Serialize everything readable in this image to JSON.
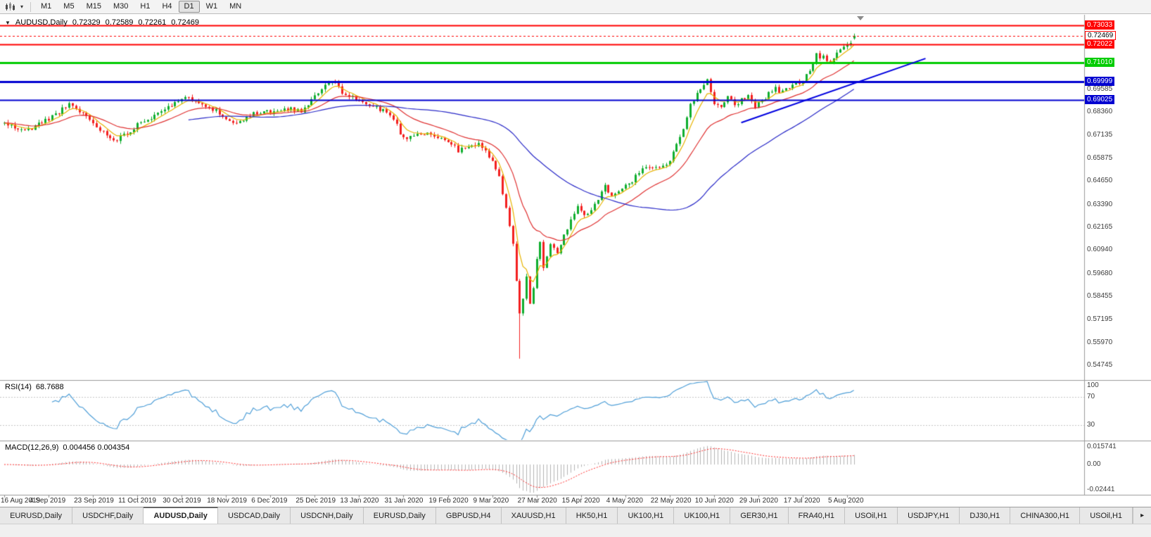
{
  "toolbar": {
    "dropdown_glyph": "▾",
    "timeframes": [
      {
        "label": "M1",
        "active": false
      },
      {
        "label": "M5",
        "active": false
      },
      {
        "label": "M15",
        "active": false
      },
      {
        "label": "M30",
        "active": false
      },
      {
        "label": "H1",
        "active": false
      },
      {
        "label": "H4",
        "active": false
      },
      {
        "label": "D1",
        "active": true
      },
      {
        "label": "W1",
        "active": false
      },
      {
        "label": "MN",
        "active": false
      }
    ]
  },
  "chart": {
    "symbol": "AUDUSD,Daily",
    "open": "0.72329",
    "high": "0.72589",
    "low": "0.72261",
    "close": "0.72469",
    "dropdown_glyph": "▼"
  },
  "price_axis": {
    "levels": [
      {
        "label": "0.73033",
        "price": 0.73033,
        "color": "#ff0000",
        "line": "solid",
        "width": 2,
        "current": false
      },
      {
        "label": "0.72469",
        "price": 0.72469,
        "color": "#ff0000",
        "line": "dashed",
        "width": 1,
        "current": true
      },
      {
        "label": "0.72022",
        "price": 0.72022,
        "color": "#ff0000",
        "line": "solid",
        "width": 2,
        "current": false
      },
      {
        "label": "0.71010",
        "price": 0.7101,
        "color": "#00cc00",
        "line": "solid",
        "width": 3,
        "current": false
      },
      {
        "label": "0.69999",
        "price": 0.69999,
        "color": "#0000d0",
        "line": "solid",
        "width": 3,
        "current": false
      },
      {
        "label": "0.69025",
        "price": 0.69025,
        "color": "#0000d0",
        "line": "solid",
        "width": 2,
        "current": false
      }
    ],
    "ticks": [
      {
        "label": "0.69585",
        "value": 0.69585
      },
      {
        "label": "0.68360",
        "value": 0.6836
      },
      {
        "label": "0.67135",
        "value": 0.67135
      },
      {
        "label": "0.65875",
        "value": 0.65875
      },
      {
        "label": "0.64650",
        "value": 0.6465
      },
      {
        "label": "0.63390",
        "value": 0.6339
      },
      {
        "label": "0.62165",
        "value": 0.62165
      },
      {
        "label": "0.60940",
        "value": 0.6094
      },
      {
        "label": "0.59680",
        "value": 0.5968
      },
      {
        "label": "0.58455",
        "value": 0.58455
      },
      {
        "label": "0.57195",
        "value": 0.57195
      },
      {
        "label": "0.55970",
        "value": 0.5597
      },
      {
        "label": "0.54745",
        "value": 0.54745
      }
    ]
  },
  "rsi": {
    "label": "RSI(14)",
    "value": "68.7688",
    "color": "#4f9fd8",
    "levels": [
      70,
      30
    ],
    "axis_labels": [
      "100",
      "70",
      "30"
    ]
  },
  "macd": {
    "label": "MACD(12,26,9)",
    "values": "0.004456 0.004354",
    "hist_color": "#b4b4b4",
    "signal_color": "#ff3030",
    "axis_labels": [
      "0.015741",
      "0.00",
      "-0.02441"
    ]
  },
  "date_axis": {
    "step": 13,
    "labels": [
      "16 Aug 2019",
      "4 Sep 2019",
      "23 Sep 2019",
      "11 Oct 2019",
      "30 Oct 2019",
      "18 Nov 2019",
      "6 Dec 2019",
      "25 Dec 2019",
      "13 Jan 2020",
      "31 Jan 2020",
      "19 Feb 2020",
      "9 Mar 2020",
      "27 Mar 2020",
      "15 Apr 2020",
      "4 May 2020",
      "22 May 2020",
      "10 Jun 2020",
      "29 Jun 2020",
      "17 Jul 2020",
      "5 Aug 2020"
    ]
  },
  "tabs": {
    "scroll_glyph": "▸",
    "items": [
      {
        "label": "EURUSD,Daily",
        "active": false
      },
      {
        "label": "USDCHF,Daily",
        "active": false
      },
      {
        "label": "AUDUSD,Daily",
        "active": true
      },
      {
        "label": "USDCAD,Daily",
        "active": false
      },
      {
        "label": "USDCNH,Daily",
        "active": false
      },
      {
        "label": "EURUSD,Daily",
        "active": false
      },
      {
        "label": "GBPUSD,H4",
        "active": false
      },
      {
        "label": "XAUUSD,H1",
        "active": false
      },
      {
        "label": "HK50,H1",
        "active": false
      },
      {
        "label": "UK100,H1",
        "active": false
      },
      {
        "label": "UK100,H1",
        "active": false
      },
      {
        "label": "GER30,H1",
        "active": false
      },
      {
        "label": "FRA40,H1",
        "active": false
      },
      {
        "label": "USOil,H1",
        "active": false
      },
      {
        "label": "USDJPY,H1",
        "active": false
      },
      {
        "label": "DJ30,H1",
        "active": false
      },
      {
        "label": "CHINA300,H1",
        "active": false
      },
      {
        "label": "USOil,H1",
        "active": false
      }
    ]
  },
  "chart_data": {
    "type": "candlestick",
    "symbol": "AUDUSD",
    "timeframe": "Daily",
    "candle_count": 250,
    "seed": 11,
    "noise": 0.0026,
    "wick": 0.0016,
    "colors": {
      "up": "#0fae2e",
      "down": "#f31f1f"
    },
    "price_anchors": [
      [
        0,
        0.6775
      ],
      [
        6,
        0.6732
      ],
      [
        13,
        0.6802
      ],
      [
        19,
        0.6874
      ],
      [
        23,
        0.683
      ],
      [
        26,
        0.6776
      ],
      [
        30,
        0.6712
      ],
      [
        33,
        0.669
      ],
      [
        36,
        0.6722
      ],
      [
        39,
        0.6772
      ],
      [
        43,
        0.681
      ],
      [
        46,
        0.6852
      ],
      [
        50,
        0.688
      ],
      [
        54,
        0.6916
      ],
      [
        58,
        0.6888
      ],
      [
        62,
        0.6842
      ],
      [
        65,
        0.6795
      ],
      [
        69,
        0.6788
      ],
      [
        72,
        0.6822
      ],
      [
        76,
        0.6838
      ],
      [
        80,
        0.683
      ],
      [
        84,
        0.6858
      ],
      [
        87,
        0.6832
      ],
      [
        90,
        0.6902
      ],
      [
        93,
        0.6956
      ],
      [
        95,
        0.7002
      ],
      [
        97,
        0.6984
      ],
      [
        100,
        0.693
      ],
      [
        104,
        0.6898
      ],
      [
        108,
        0.6862
      ],
      [
        111,
        0.6848
      ],
      [
        114,
        0.6802
      ],
      [
        117,
        0.6692
      ],
      [
        120,
        0.6718
      ],
      [
        124,
        0.6726
      ],
      [
        127,
        0.6698
      ],
      [
        130,
        0.6682
      ],
      [
        133,
        0.6628
      ],
      [
        136,
        0.6648
      ],
      [
        139,
        0.6662
      ],
      [
        141,
        0.6625
      ],
      [
        143,
        0.6582
      ],
      [
        145,
        0.6482
      ],
      [
        147,
        0.6318
      ],
      [
        149,
        0.612
      ],
      [
        151,
        0.576
      ],
      [
        152,
        0.582
      ],
      [
        153,
        0.5962
      ],
      [
        154,
        0.5808
      ],
      [
        155,
        0.5892
      ],
      [
        156,
        0.6052
      ],
      [
        157,
        0.6138
      ],
      [
        158,
        0.5988
      ],
      [
        160,
        0.6122
      ],
      [
        162,
        0.6072
      ],
      [
        164,
        0.6168
      ],
      [
        166,
        0.6262
      ],
      [
        168,
        0.6332
      ],
      [
        170,
        0.6282
      ],
      [
        172,
        0.6308
      ],
      [
        174,
        0.6372
      ],
      [
        176,
        0.6438
      ],
      [
        178,
        0.6392
      ],
      [
        180,
        0.6418
      ],
      [
        183,
        0.6448
      ],
      [
        186,
        0.6512
      ],
      [
        189,
        0.6542
      ],
      [
        192,
        0.6528
      ],
      [
        195,
        0.6582
      ],
      [
        198,
        0.6698
      ],
      [
        201,
        0.6868
      ],
      [
        204,
        0.6968
      ],
      [
        206,
        0.7012
      ],
      [
        208,
        0.6888
      ],
      [
        210,
        0.6862
      ],
      [
        212,
        0.6932
      ],
      [
        214,
        0.6862
      ],
      [
        216,
        0.6902
      ],
      [
        218,
        0.6932
      ],
      [
        220,
        0.6868
      ],
      [
        222,
        0.6898
      ],
      [
        224,
        0.6938
      ],
      [
        226,
        0.6962
      ],
      [
        228,
        0.6942
      ],
      [
        230,
        0.6972
      ],
      [
        232,
        0.6992
      ],
      [
        234,
        0.7008
      ],
      [
        236,
        0.7058
      ],
      [
        238,
        0.7142
      ],
      [
        240,
        0.7128
      ],
      [
        242,
        0.7108
      ],
      [
        244,
        0.7162
      ],
      [
        246,
        0.7178
      ],
      [
        248,
        0.7218
      ],
      [
        249,
        0.7247
      ]
    ],
    "spikes": [
      {
        "index": 151,
        "low": 0.551
      }
    ],
    "last_candle": {
      "open": 0.72329,
      "high": 0.72589,
      "low": 0.72261,
      "close": 0.72469
    },
    "moving_averages": [
      {
        "period": 6,
        "type": "ema",
        "color": "#e8b400"
      },
      {
        "period": 20,
        "type": "ema",
        "color": "#e03232"
      },
      {
        "period": 55,
        "type": "sma",
        "color": "#2929c8"
      }
    ],
    "trendline": {
      "i1": 216,
      "p1": 0.678,
      "i2": 270,
      "p2": 0.7125,
      "color": "#0000e0",
      "width": 2
    }
  }
}
